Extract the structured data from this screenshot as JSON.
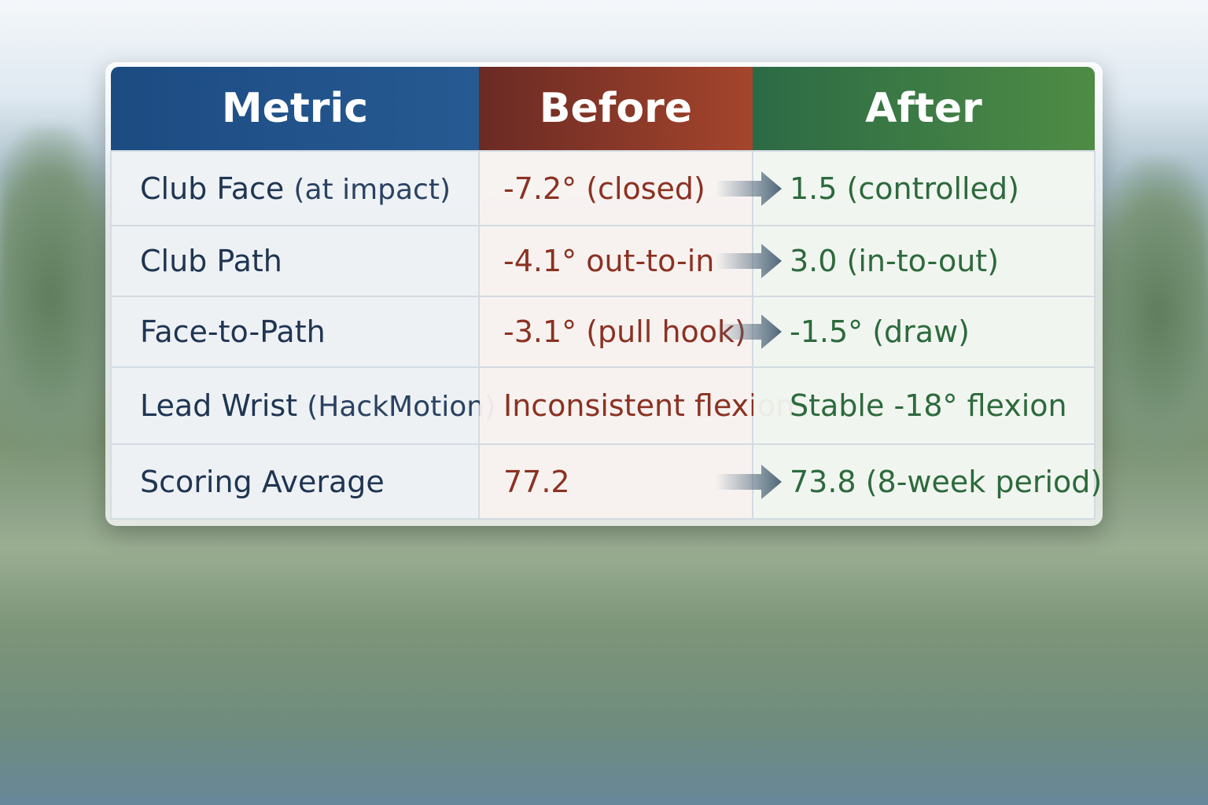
{
  "colors": {
    "metric_header": "#1c4b82",
    "before_header": "#a5452c",
    "after_header": "#4e8c45",
    "before_text": "#8b3222",
    "after_text": "#2d6a3c"
  },
  "chart_data": {
    "type": "table",
    "columns": [
      "Metric",
      "Before",
      "After"
    ],
    "rows": [
      {
        "metric": "Club Face",
        "qualifier": "(at impact)",
        "before": "-7.2° (closed)",
        "after": "1.5 (controlled)",
        "arrow": true
      },
      {
        "metric": "Club Path",
        "qualifier": "",
        "before": "-4.1° out-to-in",
        "after": "3.0 (in-to-out)",
        "arrow": true
      },
      {
        "metric": "Face-to-Path",
        "qualifier": "",
        "before": "-3.1° (pull hook)",
        "after": "-1.5° (draw)",
        "arrow": true
      },
      {
        "metric": "Lead Wrist",
        "qualifier": "(HackMotion)",
        "before": "Inconsistent flexion",
        "after": "Stable -18° flexion",
        "arrow": false
      },
      {
        "metric": "Scoring Average",
        "qualifier": "",
        "before": "77.2",
        "after": "73.8 (8-week period)",
        "arrow": true
      }
    ]
  }
}
